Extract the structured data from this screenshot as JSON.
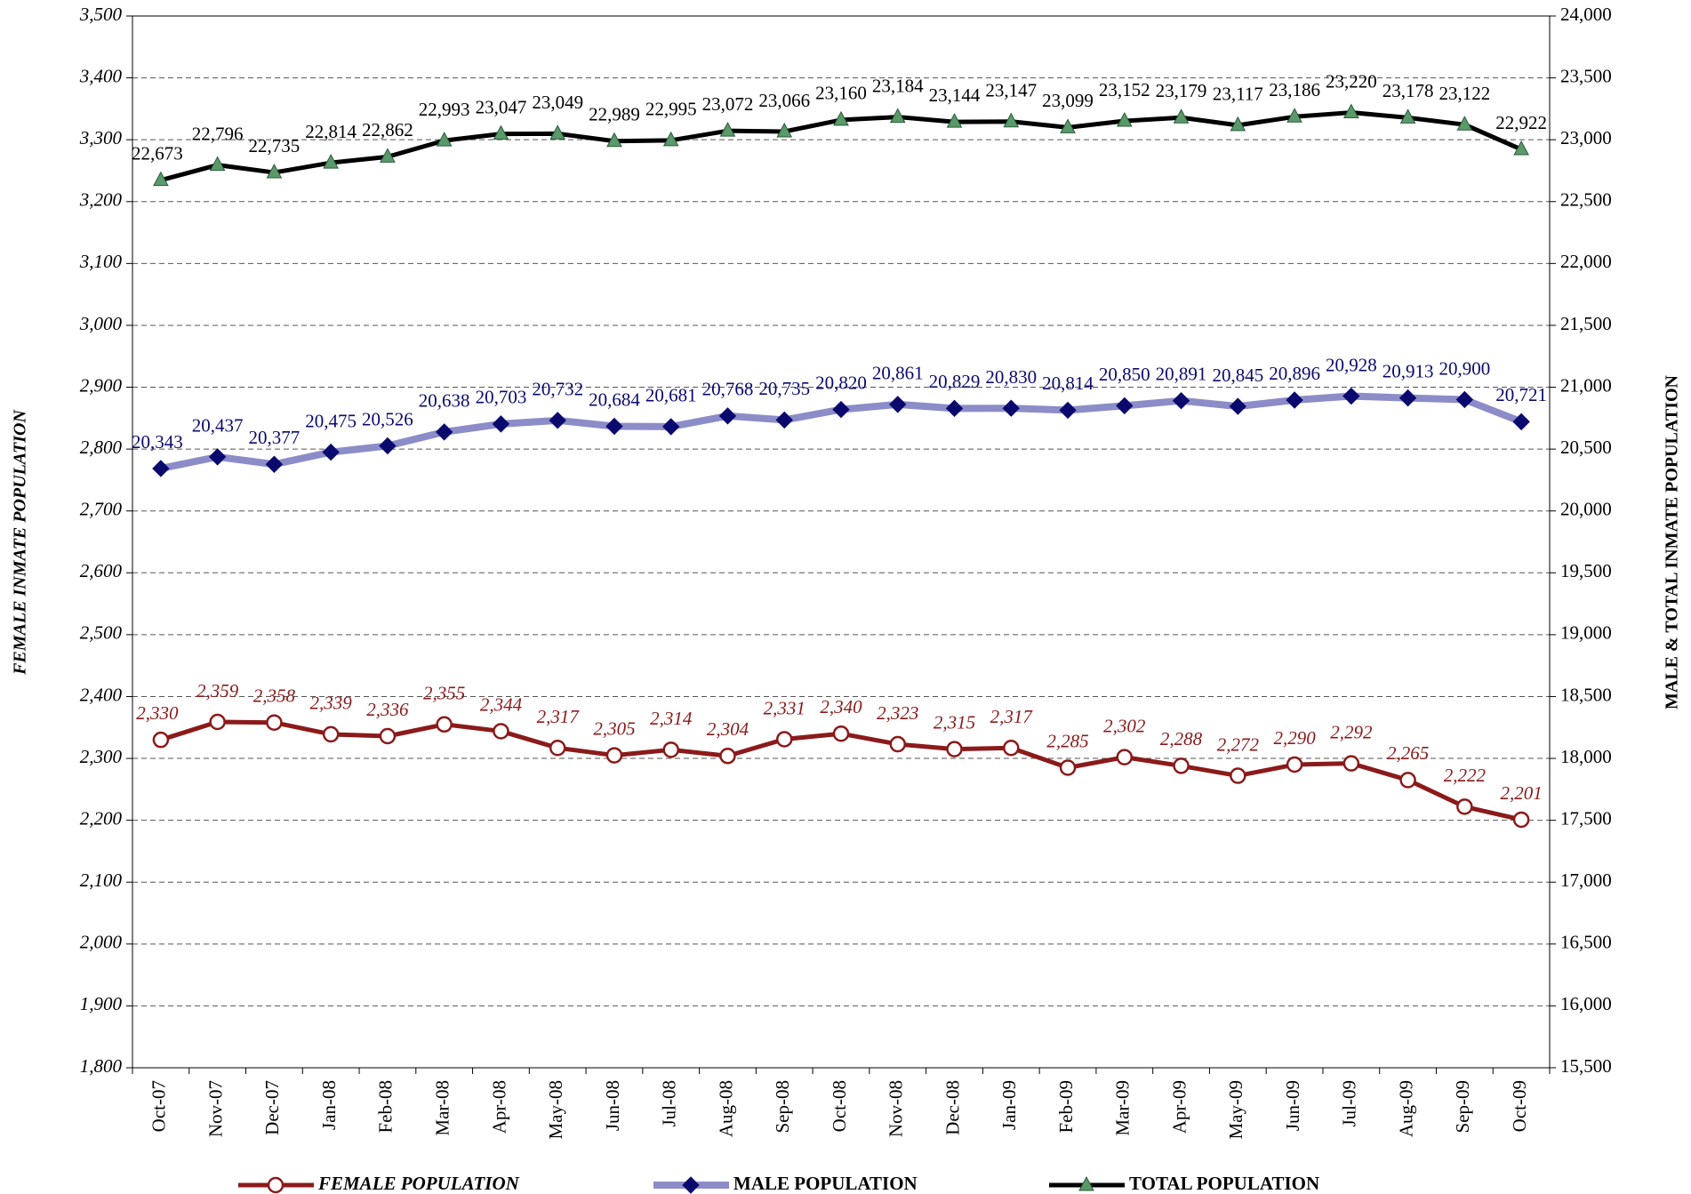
{
  "chart_data": {
    "type": "line",
    "y_label": "FEMALE INMATE POPULATION",
    "y2_label": "MALE & TOTAL INMATE POPULATION",
    "categories": [
      "Oct-07",
      "Nov-07",
      "Dec-07",
      "Jan-08",
      "Feb-08",
      "Mar-08",
      "Apr-08",
      "May-08",
      "Jun-08",
      "Jul-08",
      "Aug-08",
      "Sep-08",
      "Oct-08",
      "Nov-08",
      "Dec-08",
      "Jan-09",
      "Feb-09",
      "Mar-09",
      "Apr-09",
      "May-09",
      "Jun-09",
      "Jul-09",
      "Aug-09",
      "Sep-09",
      "Oct-09"
    ],
    "ylim": [
      1800,
      3500
    ],
    "yticks": [
      {
        "value": 1800,
        "label": "1,800"
      },
      {
        "value": 1900,
        "label": "1,900"
      },
      {
        "value": 2000,
        "label": "2,000"
      },
      {
        "value": 2100,
        "label": "2,100"
      },
      {
        "value": 2200,
        "label": "2,200"
      },
      {
        "value": 2300,
        "label": "2,300"
      },
      {
        "value": 2400,
        "label": "2,400"
      },
      {
        "value": 2500,
        "label": "2,500"
      },
      {
        "value": 2600,
        "label": "2,600"
      },
      {
        "value": 2700,
        "label": "2,700"
      },
      {
        "value": 2800,
        "label": "2,800"
      },
      {
        "value": 2900,
        "label": "2,900"
      },
      {
        "value": 3000,
        "label": "3,000"
      },
      {
        "value": 3100,
        "label": "3,100"
      },
      {
        "value": 3200,
        "label": "3,200"
      },
      {
        "value": 3300,
        "label": "3,300"
      },
      {
        "value": 3400,
        "label": "3,400"
      },
      {
        "value": 3500,
        "label": "3,500"
      }
    ],
    "y2lim": [
      15500,
      24000
    ],
    "y2ticks": [
      {
        "value": 15500,
        "label": "15,500"
      },
      {
        "value": 16000,
        "label": "16,000"
      },
      {
        "value": 16500,
        "label": "16,500"
      },
      {
        "value": 17000,
        "label": "17,000"
      },
      {
        "value": 17500,
        "label": "17,500"
      },
      {
        "value": 18000,
        "label": "18,000"
      },
      {
        "value": 18500,
        "label": "18,500"
      },
      {
        "value": 19000,
        "label": "19,000"
      },
      {
        "value": 19500,
        "label": "19,500"
      },
      {
        "value": 20000,
        "label": "20,000"
      },
      {
        "value": 20500,
        "label": "20,500"
      },
      {
        "value": 21000,
        "label": "21,000"
      },
      {
        "value": 21500,
        "label": "21,500"
      },
      {
        "value": 22000,
        "label": "22,000"
      },
      {
        "value": 22500,
        "label": "22,500"
      },
      {
        "value": 23000,
        "label": "23,000"
      },
      {
        "value": 23500,
        "label": "23,500"
      },
      {
        "value": 24000,
        "label": "24,000"
      }
    ],
    "grid": true,
    "series": [
      {
        "name": "FEMALE POPULATION",
        "color": "#8b1a1a",
        "marker": "circle",
        "axis": "y",
        "values": [
          2330,
          2359,
          2358,
          2339,
          2336,
          2355,
          2344,
          2317,
          2305,
          2314,
          2304,
          2331,
          2340,
          2323,
          2315,
          2317,
          2285,
          2302,
          2288,
          2272,
          2290,
          2292,
          2265,
          2222,
          2201
        ],
        "value_labels": [
          "2,330",
          "2,359",
          "2,358",
          "2,339",
          "2,336",
          "2,355",
          "2,344",
          "2,317",
          "2,305",
          "2,314",
          "2,304",
          "2,331",
          "2,340",
          "2,323",
          "2,315",
          "2,317",
          "2,285",
          "2,302",
          "2,288",
          "2,272",
          "2,290",
          "2,292",
          "2,265",
          "2,222",
          "2,201"
        ]
      },
      {
        "name": "MALE POPULATION",
        "color": "#8c8cc8",
        "marker_color": "#0a0a6e",
        "marker": "diamond",
        "axis": "y2",
        "values": [
          20343,
          20437,
          20377,
          20475,
          20526,
          20638,
          20703,
          20732,
          20684,
          20681,
          20768,
          20735,
          20820,
          20861,
          20829,
          20830,
          20814,
          20850,
          20891,
          20845,
          20896,
          20928,
          20913,
          20900,
          20721
        ],
        "value_labels": [
          "20,343",
          "20,437",
          "20,377",
          "20,475",
          "20,526",
          "20,638",
          "20,703",
          "20,732",
          "20,684",
          "20,681",
          "20,768",
          "20,735",
          "20,820",
          "20,861",
          "20,829",
          "20,830",
          "20,814",
          "20,850",
          "20,891",
          "20,845",
          "20,896",
          "20,928",
          "20,913",
          "20,900",
          "20,721"
        ]
      },
      {
        "name": "TOTAL POPULATION",
        "color": "#000000",
        "marker_color": "#5a9a6a",
        "marker": "triangle",
        "axis": "y2",
        "values": [
          22673,
          22796,
          22735,
          22814,
          22862,
          22993,
          23047,
          23049,
          22989,
          22995,
          23072,
          23066,
          23160,
          23184,
          23144,
          23147,
          23099,
          23152,
          23179,
          23117,
          23186,
          23220,
          23178,
          23122,
          22922
        ],
        "value_labels": [
          "22,673",
          "22,796",
          "22,735",
          "22,814",
          "22,862",
          "22,993",
          "23,047",
          "23,049",
          "22,989",
          "22,995",
          "23,072",
          "23,066",
          "23,160",
          "23,184",
          "23,144",
          "23,147",
          "23,099",
          "23,152",
          "23,179",
          "23,117",
          "23,186",
          "23,220",
          "23,178",
          "23,122",
          "22,922"
        ]
      }
    ]
  }
}
